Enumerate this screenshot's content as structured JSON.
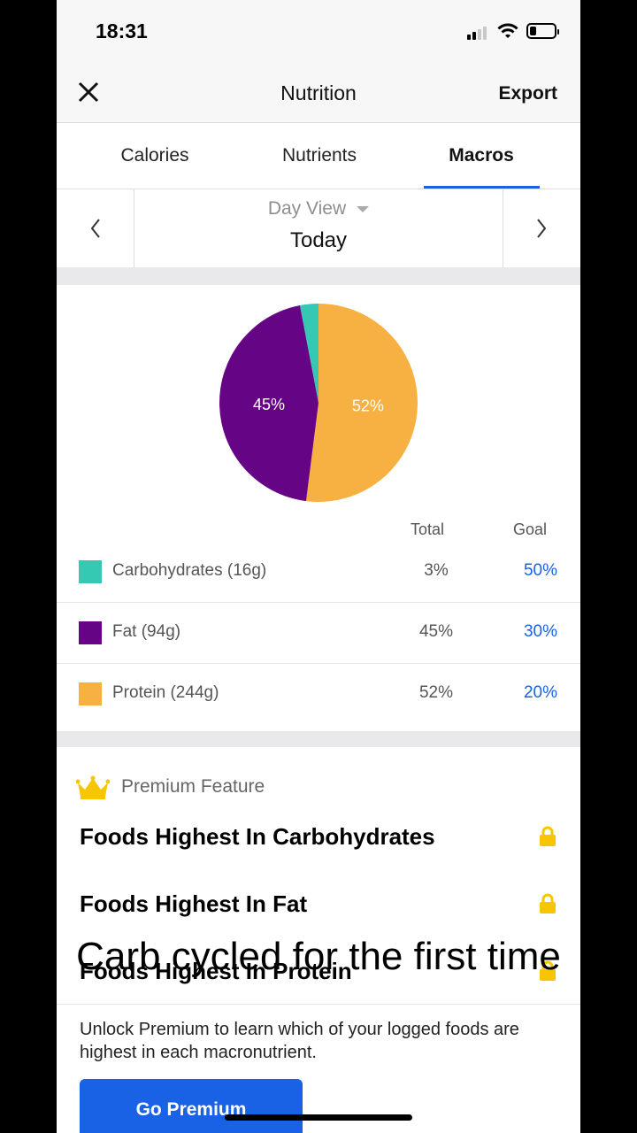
{
  "status_bar": {
    "time": "18:31"
  },
  "nav": {
    "title": "Nutrition",
    "export_label": "Export"
  },
  "tabs": [
    {
      "label": "Calories"
    },
    {
      "label": "Nutrients"
    },
    {
      "label": "Macros",
      "active": true
    }
  ],
  "date_selector": {
    "view_label": "Day View",
    "date_label": "Today"
  },
  "colors": {
    "accent": "#1a62e5",
    "carbs": "#35c9b4",
    "fat": "#650485",
    "protein": "#f7b142"
  },
  "chart_data": {
    "type": "pie",
    "slices": [
      {
        "name": "Protein",
        "percent": 52,
        "label": "52%",
        "color": "#f7b142"
      },
      {
        "name": "Fat",
        "percent": 45,
        "label": "45%",
        "color": "#650485"
      },
      {
        "name": "Carbohydrates",
        "percent": 3,
        "label": "",
        "color": "#35c9b4"
      }
    ]
  },
  "table": {
    "total_header": "Total",
    "goal_header": "Goal",
    "rows": [
      {
        "label": "Carbohydrates (16g)",
        "total": "3%",
        "goal": "50%"
      },
      {
        "label": "Fat (94g)",
        "total": "45%",
        "goal": "30%"
      },
      {
        "label": "Protein (244g)",
        "total": "52%",
        "goal": "20%"
      }
    ]
  },
  "premium": {
    "header": "Premium Feature",
    "items": [
      {
        "label": "Foods Highest In Carbohydrates"
      },
      {
        "label": "Foods Highest In Fat"
      },
      {
        "label": "Foods Highest In Protein"
      }
    ],
    "unlock_text": "Unlock Premium to learn which of your logged foods are highest in each macronutrient.",
    "button_label": "Go Premium"
  },
  "overlay_caption": "Carb cycled for the first time"
}
